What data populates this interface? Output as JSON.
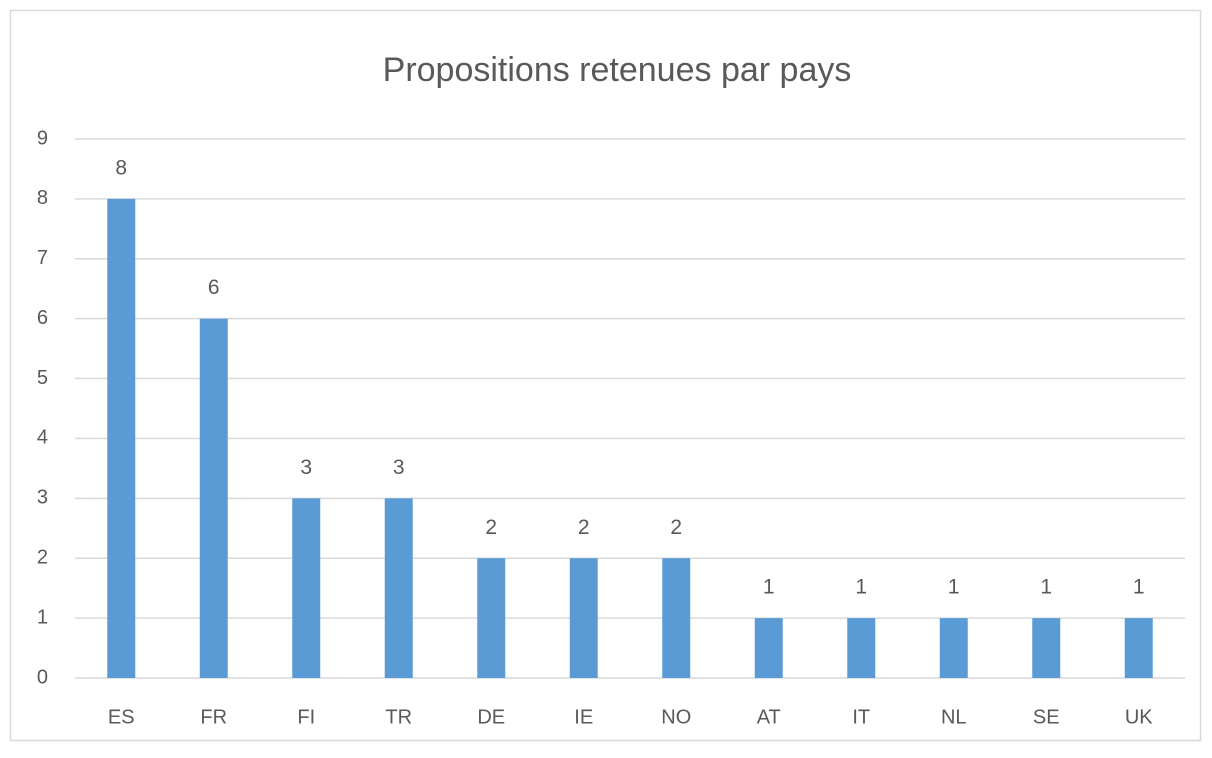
{
  "chart_data": {
    "type": "bar",
    "title": "Propositions retenues par pays",
    "categories": [
      "ES",
      "FR",
      "FI",
      "TR",
      "DE",
      "IE",
      "NO",
      "AT",
      "IT",
      "NL",
      "SE",
      "UK"
    ],
    "values": [
      8,
      6,
      3,
      3,
      2,
      2,
      2,
      1,
      1,
      1,
      1,
      1
    ],
    "color": "#5b9bd5",
    "ylim": [
      0,
      9
    ],
    "yticks": [
      0,
      1,
      2,
      3,
      4,
      5,
      6,
      7,
      8,
      9
    ],
    "grid": true
  }
}
